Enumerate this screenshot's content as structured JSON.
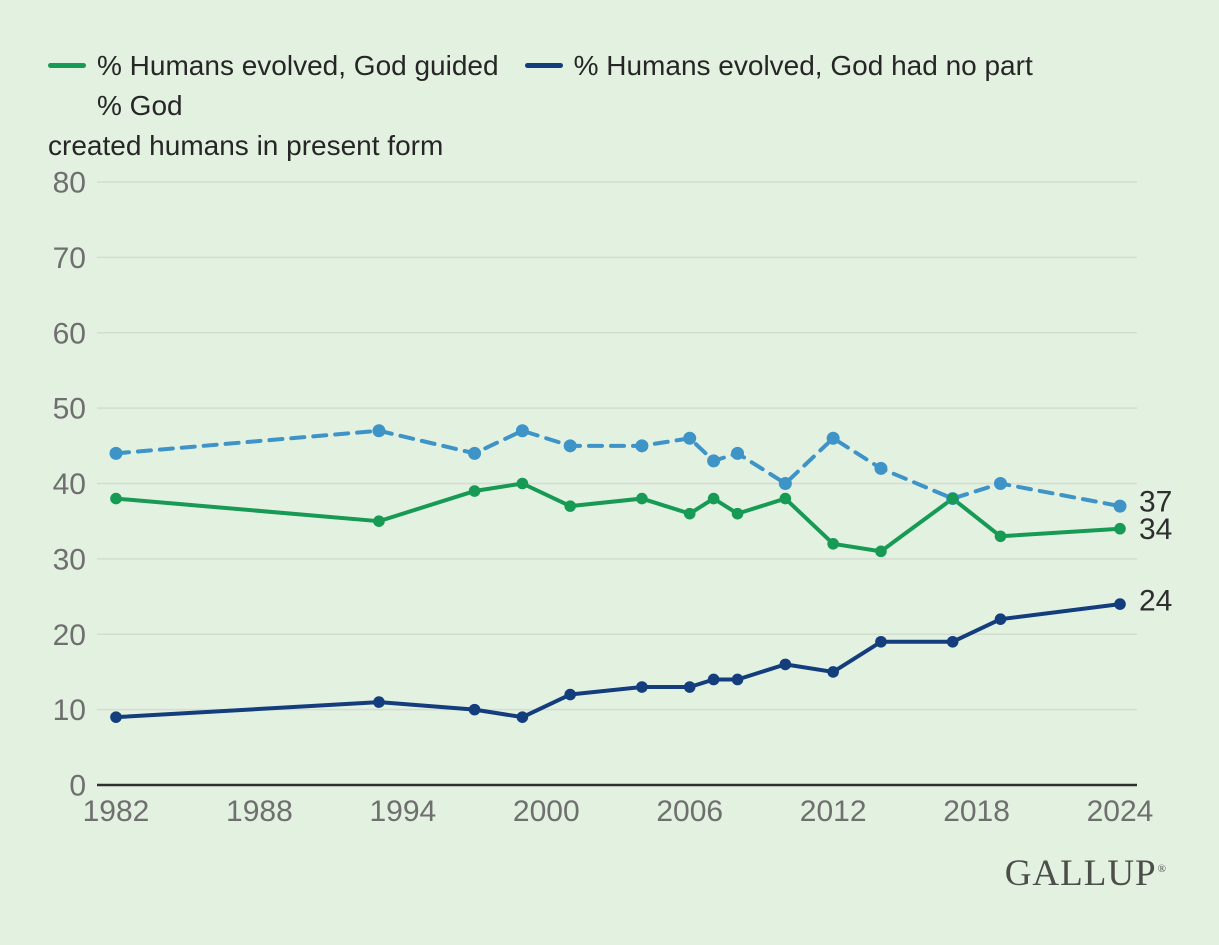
{
  "colors": {
    "background": "#e3f1e1",
    "gridline": "#d3ddd1",
    "axis_line": "#2f2f2f",
    "tick_text": "#6f6f6f",
    "value_label_text": "#2e2e2e",
    "legend_text": "#262626",
    "green": "#169a54",
    "navy": "#133d7d",
    "blue": "#3e93c7",
    "logo_text": "#4b4e49"
  },
  "legend": {
    "items": [
      {
        "label": "% Humans evolved, God guided",
        "swatch": "green-solid-line"
      },
      {
        "label": "% Humans evolved, God had no part",
        "swatch": "navy-solid-line"
      },
      {
        "label_line1": "% God",
        "label_line2": "created humans in present form",
        "swatch": "blue-dashed-line"
      }
    ]
  },
  "chart_data": {
    "type": "line",
    "x": [
      1982,
      1993,
      1997,
      1999,
      2001,
      2004,
      2006,
      2007,
      2008,
      2010,
      2012,
      2014,
      2017,
      2019,
      2024
    ],
    "series": [
      {
        "name": "% God created humans in present form",
        "color": "#3e93c7",
        "line_style": "dashed",
        "values": [
          44,
          47,
          44,
          47,
          45,
          45,
          46,
          43,
          44,
          40,
          46,
          42,
          38,
          40,
          37
        ],
        "end_label": "37"
      },
      {
        "name": "% Humans evolved, God guided",
        "color": "#169a54",
        "line_style": "solid",
        "values": [
          38,
          35,
          39,
          40,
          37,
          38,
          36,
          38,
          36,
          38,
          32,
          31,
          38,
          33,
          34
        ],
        "end_label": "34"
      },
      {
        "name": "% Humans evolved, God had no part",
        "color": "#133d7d",
        "line_style": "solid",
        "values": [
          9,
          11,
          10,
          9,
          12,
          13,
          13,
          14,
          14,
          16,
          15,
          19,
          19,
          22,
          24
        ],
        "end_label": "24"
      }
    ],
    "xticks": [
      1982,
      1988,
      1994,
      2000,
      2006,
      2012,
      2018,
      2024
    ],
    "yticks": [
      0,
      10,
      20,
      30,
      40,
      50,
      60,
      70,
      80
    ],
    "xlim": [
      1982,
      2024
    ],
    "ylim": [
      0,
      80
    ],
    "grid": true,
    "legend_position": "top"
  },
  "branding": {
    "logo": "GALLUP",
    "registered_mark": "®"
  }
}
